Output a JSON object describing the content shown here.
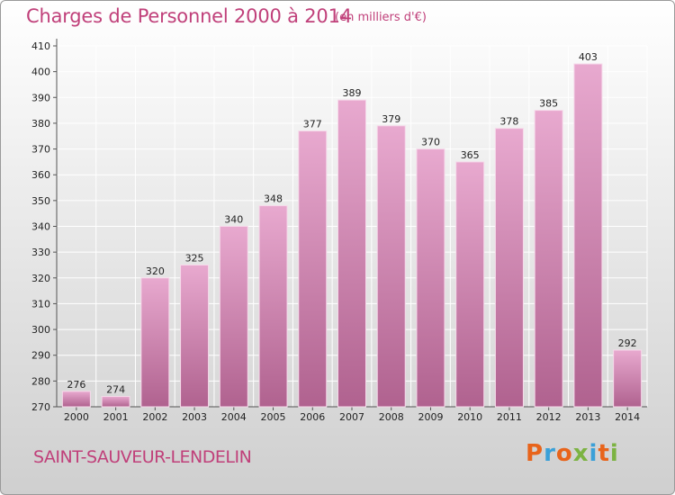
{
  "header": {
    "title": "Charges de Personnel 2000 à 2014",
    "subtitle": "(en milliers d'€)"
  },
  "footer": {
    "commune": "SAINT-SAUVEUR-LENDELIN",
    "brand": "Proxiti",
    "brand_colors": [
      "#e8641b",
      "#3aa0d8",
      "#e8641b",
      "#7cb342",
      "#3aa0d8",
      "#e8641b",
      "#7cb342"
    ]
  },
  "colors": {
    "bar_light": "#e8a9cf",
    "bar_dark": "#b0628f",
    "accent": "#c0407a"
  },
  "chart_data": {
    "type": "bar",
    "title": "Charges de Personnel 2000 à 2014",
    "subtitle": "(en milliers d'€)",
    "xlabel": "",
    "ylabel": "",
    "categories": [
      "2000",
      "2001",
      "2002",
      "2003",
      "2004",
      "2005",
      "2006",
      "2007",
      "2008",
      "2009",
      "2010",
      "2011",
      "2012",
      "2013",
      "2014"
    ],
    "values": [
      276,
      274,
      320,
      325,
      340,
      348,
      377,
      389,
      379,
      370,
      365,
      378,
      385,
      403,
      292
    ],
    "ylim": [
      270,
      410
    ],
    "yticks": [
      270,
      280,
      290,
      300,
      310,
      320,
      330,
      340,
      350,
      360,
      370,
      380,
      390,
      400,
      410
    ],
    "grid": true,
    "data_labels": true
  }
}
